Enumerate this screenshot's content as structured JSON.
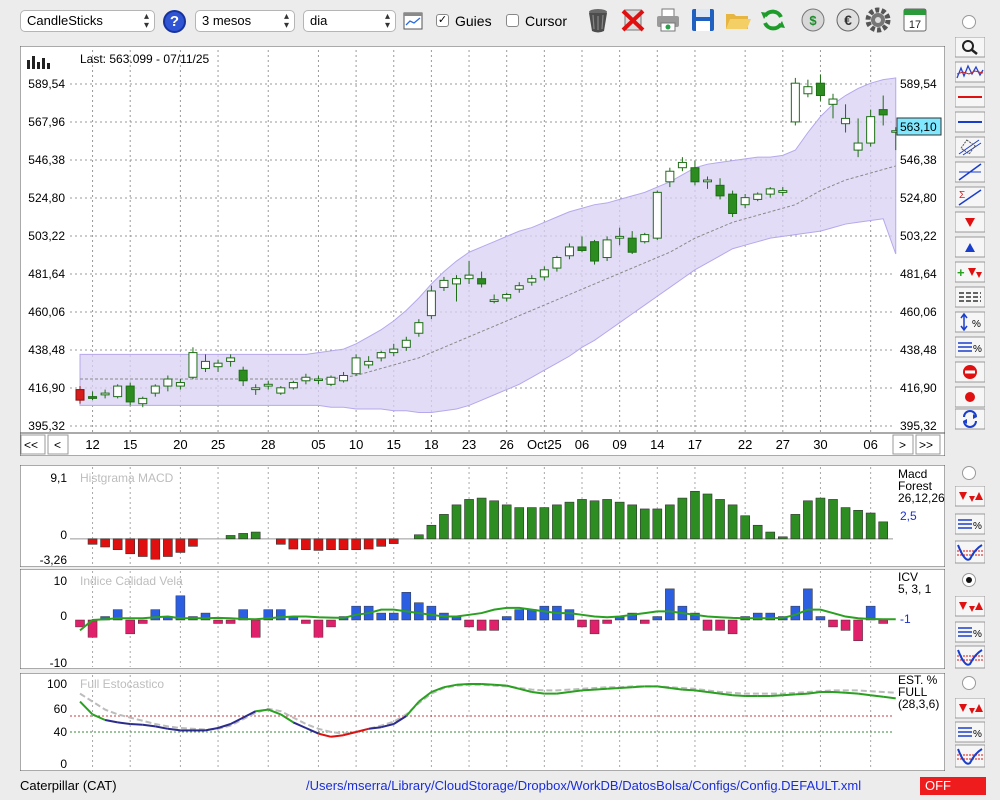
{
  "toolbar": {
    "chart_type": "CandleSticks",
    "period": "3 mesos",
    "interval": "dia",
    "guides_label": "Guies",
    "guides_checked": true,
    "cursor_label": "Cursor",
    "cursor_checked": false,
    "help_label": "?",
    "calendar_label": "17"
  },
  "main_chart": {
    "info": "Last: 563.099 - 07/11/25",
    "last_value_label": "563,10",
    "nav_first": "<<",
    "nav_prev": "<",
    "nav_next": ">",
    "nav_last": ">>"
  },
  "macd_panel": {
    "title": "Histgrama MACD",
    "legend_name": "Macd",
    "legend_sub": "Forest",
    "legend_params": "26,12,26",
    "legend_value": "2,5",
    "y_ticks": [
      "9,1",
      "0",
      "-3,26"
    ]
  },
  "icv_panel": {
    "title": "Indice Calidad Vela",
    "legend_name": "ICV",
    "legend_params": "5, 3, 1",
    "legend_value": "-1",
    "y_ticks": [
      "10",
      "0",
      "-10"
    ]
  },
  "stoch_panel": {
    "title": "Full Estocastico",
    "legend_name": "EST. %",
    "legend_sub": "FULL",
    "legend_params": "(28,3,6)",
    "y_ticks": [
      "100",
      "60",
      "40",
      "0"
    ]
  },
  "footer": {
    "symbol": "Caterpillar (CAT)",
    "config_path": "/Users/mserra/Library/CloudStorage/Dropbox/WorkDB/DatosBolsa/Configs/Config.DEFAULT.xml",
    "status": "OFF"
  },
  "colors": {
    "up_candle": "#ffffff",
    "down_candle": "#2c8c1f",
    "red_candle": "#d71c1c",
    "macd_pos": "#2d8c22",
    "macd_neg": "#e01010",
    "icv_pos": "#2b5ee0",
    "icv_neg": "#e0206a",
    "band_fill": "#d8d0f4",
    "status_off": "#ee1c1c"
  },
  "chart_data": {
    "type": "candlestick",
    "y_ticks": [
      "589,54",
      "567,96",
      "546,38",
      "524,80",
      "503,22",
      "481,64",
      "460,06",
      "438,48",
      "416,90",
      "395,32"
    ],
    "ylim": [
      395.32,
      589.54
    ],
    "x_tick_labels": [
      "12",
      "15",
      "20",
      "25",
      "28",
      "05",
      "10",
      "15",
      "18",
      "23",
      "26",
      "Oct25",
      "06",
      "09",
      "14",
      "17",
      "22",
      "27",
      "30",
      "06"
    ],
    "candles": [
      [
        416,
        418,
        408,
        410
      ],
      [
        412,
        415,
        410,
        411
      ],
      [
        413,
        416,
        411,
        414
      ],
      [
        412,
        419,
        411,
        418
      ],
      [
        418,
        420,
        407,
        409
      ],
      [
        408,
        412,
        406,
        411
      ],
      [
        414,
        419,
        412,
        418
      ],
      [
        418,
        424,
        415,
        422
      ],
      [
        418,
        422,
        416,
        420
      ],
      [
        423,
        440,
        422,
        437
      ],
      [
        428,
        436,
        426,
        432
      ],
      [
        429,
        433,
        426,
        431
      ],
      [
        432,
        436,
        429,
        434
      ],
      [
        427,
        429,
        418,
        421
      ],
      [
        416,
        419,
        413,
        417
      ],
      [
        418,
        421,
        416,
        419
      ],
      [
        414,
        418,
        413,
        417
      ],
      [
        417,
        421,
        416,
        420
      ],
      [
        421,
        425,
        419,
        423
      ],
      [
        422,
        424,
        419,
        422
      ],
      [
        419,
        424,
        418,
        423
      ],
      [
        421,
        426,
        420,
        424
      ],
      [
        425,
        436,
        424,
        434
      ],
      [
        430,
        435,
        428,
        432
      ],
      [
        434,
        438,
        432,
        437
      ],
      [
        437,
        442,
        435,
        439
      ],
      [
        440,
        446,
        438,
        444
      ],
      [
        448,
        456,
        446,
        454
      ],
      [
        458,
        475,
        456,
        472
      ],
      [
        474,
        480,
        472,
        478
      ],
      [
        476,
        481,
        466,
        479
      ],
      [
        479,
        489,
        476,
        481
      ],
      [
        479,
        483,
        474,
        476
      ],
      [
        466,
        470,
        465,
        467
      ],
      [
        468,
        471,
        466,
        470
      ],
      [
        473,
        477,
        471,
        475
      ],
      [
        477,
        481,
        475,
        479
      ],
      [
        480,
        486,
        478,
        484
      ],
      [
        485,
        492,
        483,
        491
      ],
      [
        492,
        499,
        490,
        497
      ],
      [
        497,
        503,
        494,
        495
      ],
      [
        500,
        501,
        487,
        489
      ],
      [
        491,
        503,
        489,
        501
      ],
      [
        502,
        508,
        498,
        503
      ],
      [
        502,
        506,
        493,
        494
      ],
      [
        500,
        505,
        499,
        504
      ],
      [
        502,
        529,
        501,
        528
      ],
      [
        534,
        542,
        531,
        540
      ],
      [
        542,
        548,
        540,
        545
      ],
      [
        542,
        546,
        532,
        534
      ],
      [
        534,
        537,
        530,
        535
      ],
      [
        532,
        536,
        524,
        526
      ],
      [
        527,
        529,
        514,
        516
      ],
      [
        521,
        527,
        519,
        525
      ],
      [
        524,
        528,
        523,
        527
      ],
      [
        527,
        531,
        525,
        530
      ],
      [
        528,
        531,
        526,
        529
      ],
      [
        568,
        593,
        566,
        590
      ],
      [
        584,
        592,
        582,
        588
      ],
      [
        590,
        595,
        580,
        583
      ],
      [
        578,
        584,
        570,
        581
      ],
      [
        567,
        578,
        562,
        570
      ],
      [
        552,
        570,
        548,
        556
      ],
      [
        556,
        575,
        554,
        571
      ],
      [
        575,
        583,
        566,
        572
      ],
      [
        563,
        565,
        552,
        563
      ]
    ],
    "red_candle_index": 0,
    "bollinger": {
      "upper": [
        436,
        436,
        436,
        436,
        436,
        436,
        436,
        436,
        436,
        436,
        436,
        436,
        436,
        436,
        436,
        436,
        436,
        436,
        436,
        437,
        438,
        439,
        442,
        446,
        450,
        455,
        461,
        468,
        476,
        483,
        489,
        494,
        497,
        500,
        503,
        506,
        508,
        511,
        514,
        517,
        519,
        521,
        522,
        524,
        526,
        528,
        531,
        534,
        538,
        542,
        544,
        545,
        546,
        547,
        548,
        548,
        549,
        552,
        562,
        571,
        578,
        583,
        587,
        590,
        592,
        593
      ],
      "middle": [
        422,
        422,
        422,
        422,
        422,
        422,
        422,
        422,
        422,
        422,
        422,
        422,
        422,
        422,
        422,
        422,
        422,
        422,
        422,
        422,
        422,
        423,
        424,
        426,
        428,
        430,
        432,
        434,
        437,
        440,
        443,
        446,
        449,
        452,
        455,
        458,
        461,
        464,
        467,
        470,
        473,
        476,
        479,
        482,
        485,
        488,
        491,
        494,
        498,
        502,
        505,
        508,
        511,
        513,
        515,
        517,
        519,
        521,
        525,
        529,
        532,
        535,
        537,
        539,
        541,
        543
      ],
      "lower": [
        407,
        407,
        407,
        407,
        407,
        407,
        407,
        407,
        407,
        407,
        407,
        407,
        407,
        407,
        407,
        407,
        407,
        407,
        407,
        407,
        406,
        406,
        405,
        405,
        405,
        404,
        404,
        403,
        403,
        404,
        405,
        407,
        410,
        413,
        416,
        419,
        423,
        427,
        431,
        435,
        440,
        444,
        449,
        454,
        459,
        464,
        469,
        474,
        479,
        484,
        488,
        492,
        496,
        498,
        500,
        502,
        503,
        504,
        505,
        506,
        508,
        510,
        511,
        512,
        513,
        493
      ]
    },
    "macd": {
      "ylim": [
        -3.26,
        9.1
      ],
      "values": [
        0,
        -0.8,
        -1.2,
        -1.6,
        -2.2,
        -2.6,
        -3.0,
        -2.6,
        -2.0,
        -1.1,
        0,
        0,
        0.5,
        0.8,
        1.0,
        0,
        -0.8,
        -1.5,
        -1.6,
        -1.7,
        -1.6,
        -1.6,
        -1.6,
        -1.5,
        -1.1,
        -0.7,
        0,
        0.6,
        2.0,
        3.6,
        5.0,
        5.8,
        6.0,
        5.6,
        5.0,
        4.6,
        4.6,
        4.6,
        5.0,
        5.4,
        5.8,
        5.6,
        5.8,
        5.4,
        5.0,
        4.4,
        4.4,
        5.0,
        6.0,
        7.0,
        6.6,
        5.8,
        5.0,
        3.4,
        2.0,
        1.0,
        0.3,
        3.6,
        5.6,
        6.0,
        5.8,
        4.6,
        4.2,
        3.8,
        2.5,
        0
      ],
      "signal": []
    },
    "icv": {
      "ylim": [
        -13,
        13
      ],
      "values": [
        -2,
        -5,
        1,
        3,
        -4,
        -1,
        3,
        1,
        7,
        1,
        2,
        -1,
        -1,
        3,
        -5,
        3,
        3,
        1,
        -1,
        -5,
        -2,
        1,
        4,
        4,
        2,
        2,
        8,
        5,
        4,
        2,
        1,
        -2,
        -3,
        -3,
        1,
        3,
        3,
        4,
        4,
        3,
        -2,
        -4,
        -1,
        1,
        2,
        -1,
        1,
        9,
        4,
        2,
        -3,
        -3,
        -4,
        1,
        2,
        2,
        1,
        4,
        9,
        1,
        -2,
        -3,
        -6,
        4,
        -1,
        0
      ],
      "line": [
        -3,
        0,
        0.2,
        0.5,
        0.5,
        0.5,
        0.8,
        1,
        0.5,
        0.5,
        0.5,
        0.6,
        0.5,
        0.3,
        0.2,
        0.5,
        0.8,
        1,
        1,
        0.8,
        0.7,
        0.6,
        1.5,
        2,
        3,
        3,
        2.5,
        2,
        1.5,
        1,
        1,
        1.5,
        2,
        3,
        3.5,
        3.5,
        3,
        2.5,
        2,
        2,
        1.5,
        1,
        0.8,
        1,
        1.5,
        2,
        2.5,
        2.5,
        2,
        1.5,
        1,
        0.8,
        0.6,
        0.5,
        0.5,
        0.5,
        0.6,
        1.5,
        3,
        3,
        2,
        1,
        0.5,
        0.3,
        0.2,
        0.2
      ]
    },
    "stochastic": {
      "ylim": [
        0,
        100
      ],
      "k": [
        78,
        62,
        55,
        52,
        50,
        49,
        47,
        44,
        42,
        42,
        42,
        45,
        50,
        58,
        66,
        68,
        62,
        52,
        45,
        38,
        34,
        36,
        40,
        44,
        46,
        50,
        60,
        78,
        90,
        96,
        99,
        100,
        100,
        99,
        98,
        94,
        90,
        88,
        88,
        90,
        92,
        93,
        94,
        95,
        96,
        97,
        97,
        95,
        93,
        92,
        90,
        88,
        86,
        85,
        85,
        85,
        86,
        87,
        88,
        90,
        90,
        89,
        88,
        86,
        84,
        82
      ],
      "d": [
        88,
        78,
        68,
        62,
        58,
        54,
        50,
        47,
        45,
        44,
        43,
        44,
        48,
        56,
        64,
        69,
        66,
        58,
        50,
        44,
        40,
        38,
        40,
        44,
        48,
        53,
        62,
        76,
        88,
        95,
        98,
        99,
        99,
        98,
        97,
        95,
        93,
        92,
        92,
        93,
        94,
        95,
        96,
        96,
        97,
        97,
        97,
        96,
        95,
        94,
        92,
        90,
        89,
        88,
        88,
        88,
        88,
        89,
        90,
        91,
        92,
        92,
        92,
        91,
        90,
        89
      ],
      "levels": [
        60,
        40
      ]
    }
  }
}
